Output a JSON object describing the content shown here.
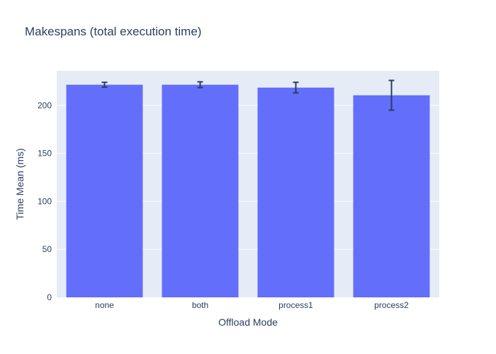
{
  "chart_data": {
    "type": "bar",
    "title": "Makespans (total execution time)",
    "xlabel": "Offload Mode",
    "ylabel": "Time Mean (ms)",
    "categories": [
      "none",
      "both",
      "process1",
      "process2"
    ],
    "values": [
      221.5,
      221.5,
      218.5,
      210.5
    ],
    "error": [
      2.5,
      3.0,
      5.5,
      15.5
    ],
    "ylim": [
      0,
      236
    ],
    "yticks": [
      0,
      50,
      100,
      150,
      200
    ],
    "grid": true,
    "colors": {
      "bar": "#636efa",
      "plot_bg": "#e5ecf6",
      "grid": "#ffffff",
      "error_bar": "#2a3f5f",
      "text": "#2a3f5f"
    }
  }
}
